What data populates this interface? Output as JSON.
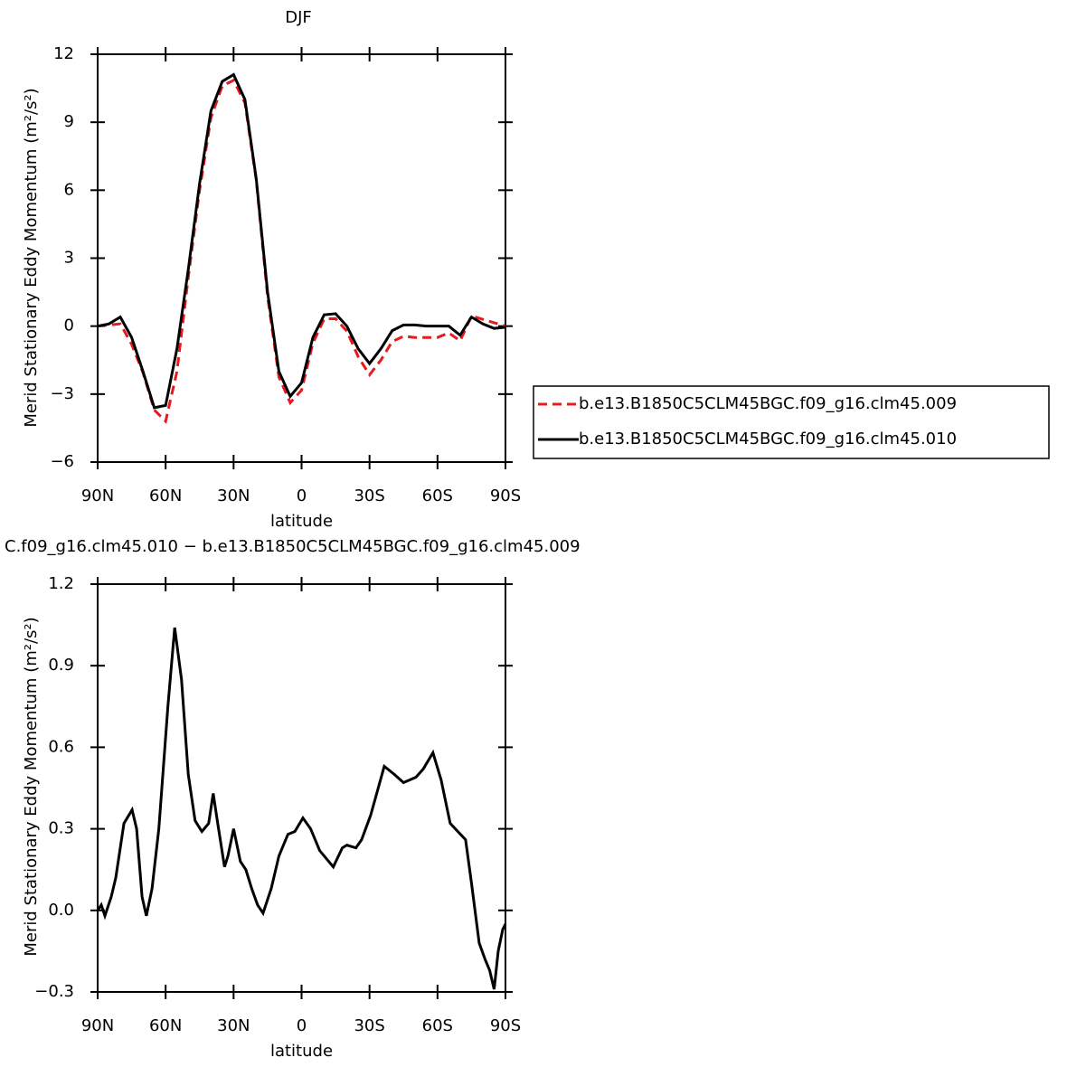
{
  "chart_data": [
    {
      "type": "line",
      "title": "DJF",
      "xlabel": "latitude",
      "ylabel": "Merid Stationary Eddy Momentum (m²/s²)",
      "xlim": [
        90,
        -90
      ],
      "xticks": [
        {
          "value": 90,
          "label": "90N"
        },
        {
          "value": 60,
          "label": "60N"
        },
        {
          "value": 30,
          "label": "30N"
        },
        0,
        {
          "value": -30,
          "label": "30S"
        },
        {
          "value": -60,
          "label": "60S"
        },
        {
          "value": -90,
          "label": "90S"
        }
      ],
      "ylim": [
        -6,
        12
      ],
      "yticks": [
        {
          "value": -6,
          "label": "−6"
        },
        {
          "value": -3,
          "label": "−3"
        },
        0,
        3,
        6,
        9,
        12
      ],
      "legend": "right",
      "x": [
        90,
        85,
        80,
        75,
        70,
        65,
        60,
        55,
        50,
        45,
        40,
        35,
        30,
        25,
        20,
        15,
        10,
        5,
        0,
        -5,
        -10,
        -15,
        -20,
        -25,
        -30,
        -35,
        -40,
        -45,
        -50,
        -55,
        -60,
        -65,
        -70,
        -75,
        -80,
        -85,
        -90
      ],
      "series": [
        {
          "name": "b.e13.B1850C5CLM45BGC.f09_g16.clm45.009",
          "color": "#e41a1c",
          "linestyle": "dashed",
          "values": [
            0,
            0.05,
            0.1,
            -0.8,
            -2.05,
            -3.7,
            -4.2,
            -2.0,
            2.15,
            6.0,
            9.2,
            10.6,
            10.85,
            9.85,
            6.45,
            1.3,
            -2.25,
            -3.38,
            -2.83,
            -0.75,
            0.32,
            0.33,
            -0.22,
            -1.35,
            -2.15,
            -1.5,
            -0.68,
            -0.45,
            -0.5,
            -0.5,
            -0.5,
            -0.3,
            -0.65,
            0.45,
            0.3,
            0.15,
            0.0
          ]
        },
        {
          "name": "b.e13.B1850C5CLM45BGC.f09_g16.clm45.010",
          "color": "#000000",
          "linestyle": "solid",
          "values": [
            0,
            0.1,
            0.4,
            -0.5,
            -2.0,
            -3.6,
            -3.5,
            -1.0,
            2.5,
            6.3,
            9.5,
            10.8,
            11.1,
            10.0,
            6.5,
            1.5,
            -2.0,
            -3.1,
            -2.5,
            -0.5,
            0.5,
            0.55,
            0,
            -1.0,
            -1.65,
            -1.0,
            -0.2,
            0.05,
            0.05,
            0,
            0,
            0,
            -0.4,
            0.4,
            0.1,
            -0.1,
            -0.05
          ]
        }
      ]
    },
    {
      "type": "line",
      "title": "C.f09_g16.clm45.010 − b.e13.B1850C5CLM45BGC.f09_g16.clm45.009",
      "xlabel": "latitude",
      "ylabel": "Merid Stationary Eddy Momentum (m²/s²)",
      "xlim": [
        90,
        -90
      ],
      "xticks": [
        {
          "value": 90,
          "label": "90N"
        },
        {
          "value": 60,
          "label": "60N"
        },
        {
          "value": 30,
          "label": "30N"
        },
        0,
        {
          "value": -30,
          "label": "30S"
        },
        {
          "value": -60,
          "label": "60S"
        },
        {
          "value": -90,
          "label": "90S"
        }
      ],
      "ylim": [
        -0.3,
        1.2
      ],
      "yticks": [
        {
          "value": -0.3,
          "label": "−0.3"
        },
        {
          "value": 0,
          "label": "0.0"
        },
        0.3,
        0.6,
        0.9,
        1.2
      ],
      "x": [
        90,
        88.4,
        86.8,
        84,
        82,
        78.4,
        74.8,
        72.8,
        70.4,
        68.5,
        66,
        63,
        59,
        56,
        53,
        50,
        47,
        44,
        41,
        39,
        37,
        34,
        32.5,
        30,
        27,
        24.6,
        22,
        19.4,
        17,
        13.4,
        10,
        6,
        3,
        -0.6,
        -4,
        -8,
        -14,
        -18,
        -20,
        -24,
        -26.5,
        -30.5,
        -36.5,
        -41,
        -45,
        -50.5,
        -53.7,
        -58,
        -61.6,
        -65.6,
        -69,
        -72.4,
        -75,
        -78.4,
        -81,
        -83,
        -85,
        -86.8,
        -88.8,
        -90
      ],
      "series": [
        {
          "color": "#000000",
          "linestyle": "solid",
          "values": [
            0,
            0.02,
            -0.02,
            0.05,
            0.12,
            0.32,
            0.37,
            0.3,
            0.05,
            -0.02,
            0.08,
            0.3,
            0.75,
            1.04,
            0.85,
            0.5,
            0.33,
            0.29,
            0.32,
            0.43,
            0.32,
            0.16,
            0.2,
            0.3,
            0.18,
            0.15,
            0.08,
            0.02,
            -0.01,
            0.08,
            0.2,
            0.28,
            0.29,
            0.34,
            0.3,
            0.22,
            0.16,
            0.23,
            0.24,
            0.23,
            0.26,
            0.35,
            0.53,
            0.5,
            0.47,
            0.49,
            0.52,
            0.58,
            0.48,
            0.32,
            0.29,
            0.26,
            0.1,
            -0.12,
            -0.18,
            -0.22,
            -0.29,
            -0.15,
            -0.07,
            -0.05
          ]
        }
      ]
    }
  ]
}
